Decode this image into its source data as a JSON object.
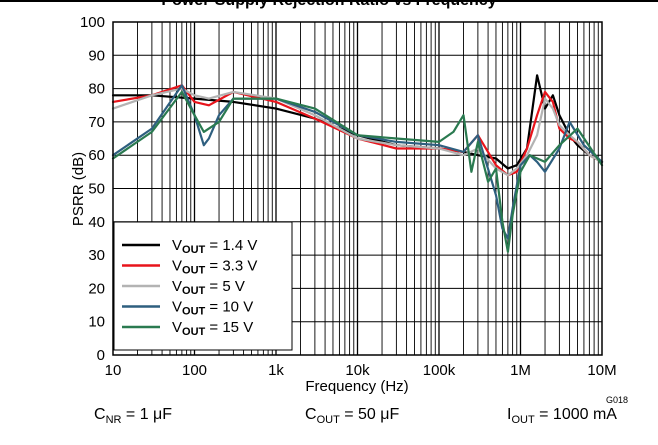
{
  "title": "Power-Supply Rejection Ratio vs Frequency",
  "chart_data": {
    "type": "line",
    "xlabel": "Frequency (Hz)",
    "ylabel": "PSRR (dB)",
    "xscale": "log",
    "xlim": [
      10,
      10000000
    ],
    "ylim": [
      0,
      100
    ],
    "x_ticks": [
      10,
      100,
      1000,
      10000,
      100000,
      1000000,
      10000000
    ],
    "x_tick_labels": [
      "10",
      "100",
      "1k",
      "10k",
      "100k",
      "1M",
      "10M"
    ],
    "y_ticks": [
      0,
      10,
      20,
      30,
      40,
      50,
      60,
      70,
      80,
      90,
      100
    ],
    "grid": true,
    "legend_position": "bottom-left",
    "figure_id": "G018",
    "series": [
      {
        "name_sub": "OUT",
        "name_value": "1.4 V",
        "color": "#000000",
        "x": [
          10,
          30,
          100,
          300,
          1000,
          3000,
          10000,
          30000,
          100000,
          200000,
          300000,
          500000,
          700000,
          900000,
          1200000,
          1600000,
          2000000,
          2500000,
          3000000,
          4000000,
          5000000,
          7000000,
          10000000
        ],
        "y": [
          78,
          78,
          77,
          76,
          74,
          71,
          66,
          63,
          62,
          61,
          60,
          59,
          56,
          57,
          62,
          84,
          74,
          78,
          72,
          66,
          63,
          60,
          58
        ]
      },
      {
        "name_sub": "OUT",
        "name_value": "3.3 V",
        "color": "#e8141b",
        "x": [
          10,
          30,
          70,
          100,
          150,
          300,
          1000,
          3000,
          10000,
          30000,
          100000,
          200000,
          300000,
          500000,
          700000,
          900000,
          1200000,
          1600000,
          2000000,
          2500000,
          3000000,
          4000000,
          5000000,
          7000000,
          10000000
        ],
        "y": [
          76,
          78,
          81,
          76,
          75,
          79,
          76,
          71,
          65,
          62,
          62,
          61,
          66,
          57,
          54,
          55,
          62,
          72,
          79,
          76,
          68,
          65,
          64,
          60,
          58
        ]
      },
      {
        "name_sub": "OUT",
        "name_value": "5 V",
        "color": "#b3b3b3",
        "x": [
          10,
          30,
          70,
          100,
          150,
          300,
          1000,
          3000,
          10000,
          30000,
          100000,
          200000,
          300000,
          500000,
          700000,
          900000,
          1200000,
          1600000,
          2000000,
          2500000,
          3000000,
          4000000,
          5000000,
          7000000,
          10000000
        ],
        "y": [
          74,
          78,
          80,
          78,
          77,
          79,
          77,
          72,
          65,
          63,
          62,
          60,
          62,
          56,
          54,
          56,
          60,
          66,
          77,
          74,
          69,
          66,
          64,
          60,
          58
        ]
      },
      {
        "name_sub": "OUT",
        "name_value": "10 V",
        "color": "#2e5f7f",
        "x": [
          10,
          30,
          70,
          100,
          130,
          150,
          200,
          300,
          1000,
          3000,
          10000,
          30000,
          100000,
          200000,
          300000,
          500000,
          600000,
          700000,
          800000,
          1000000,
          1300000,
          1600000,
          2000000,
          3000000,
          4000000,
          6000000,
          10000000
        ],
        "y": [
          60,
          68,
          81,
          72,
          63,
          65,
          72,
          77,
          77,
          73,
          66,
          64,
          63,
          61,
          66,
          48,
          38,
          35,
          44,
          57,
          60,
          58,
          55,
          62,
          70,
          63,
          58
        ]
      },
      {
        "name_sub": "OUT",
        "name_value": "15 V",
        "color": "#2a7a50",
        "x": [
          10,
          30,
          70,
          100,
          130,
          200,
          300,
          1000,
          3000,
          10000,
          30000,
          100000,
          150000,
          200000,
          250000,
          300000,
          400000,
          500000,
          600000,
          700000,
          800000,
          1000000,
          1300000,
          2000000,
          3000000,
          5000000,
          10000000
        ],
        "y": [
          59,
          67,
          79,
          72,
          67,
          70,
          77,
          77,
          74,
          66,
          65,
          64,
          67,
          72,
          55,
          64,
          52,
          56,
          40,
          31,
          42,
          55,
          60,
          58,
          63,
          68,
          57
        ]
      }
    ]
  },
  "conditions": [
    {
      "main": "C",
      "sub": "NR",
      "rest": " = 1 μF"
    },
    {
      "main": "C",
      "sub": "OUT",
      "rest": " = 50 μF"
    },
    {
      "main": "I",
      "sub": "OUT",
      "rest": " = 1000 mA"
    }
  ]
}
